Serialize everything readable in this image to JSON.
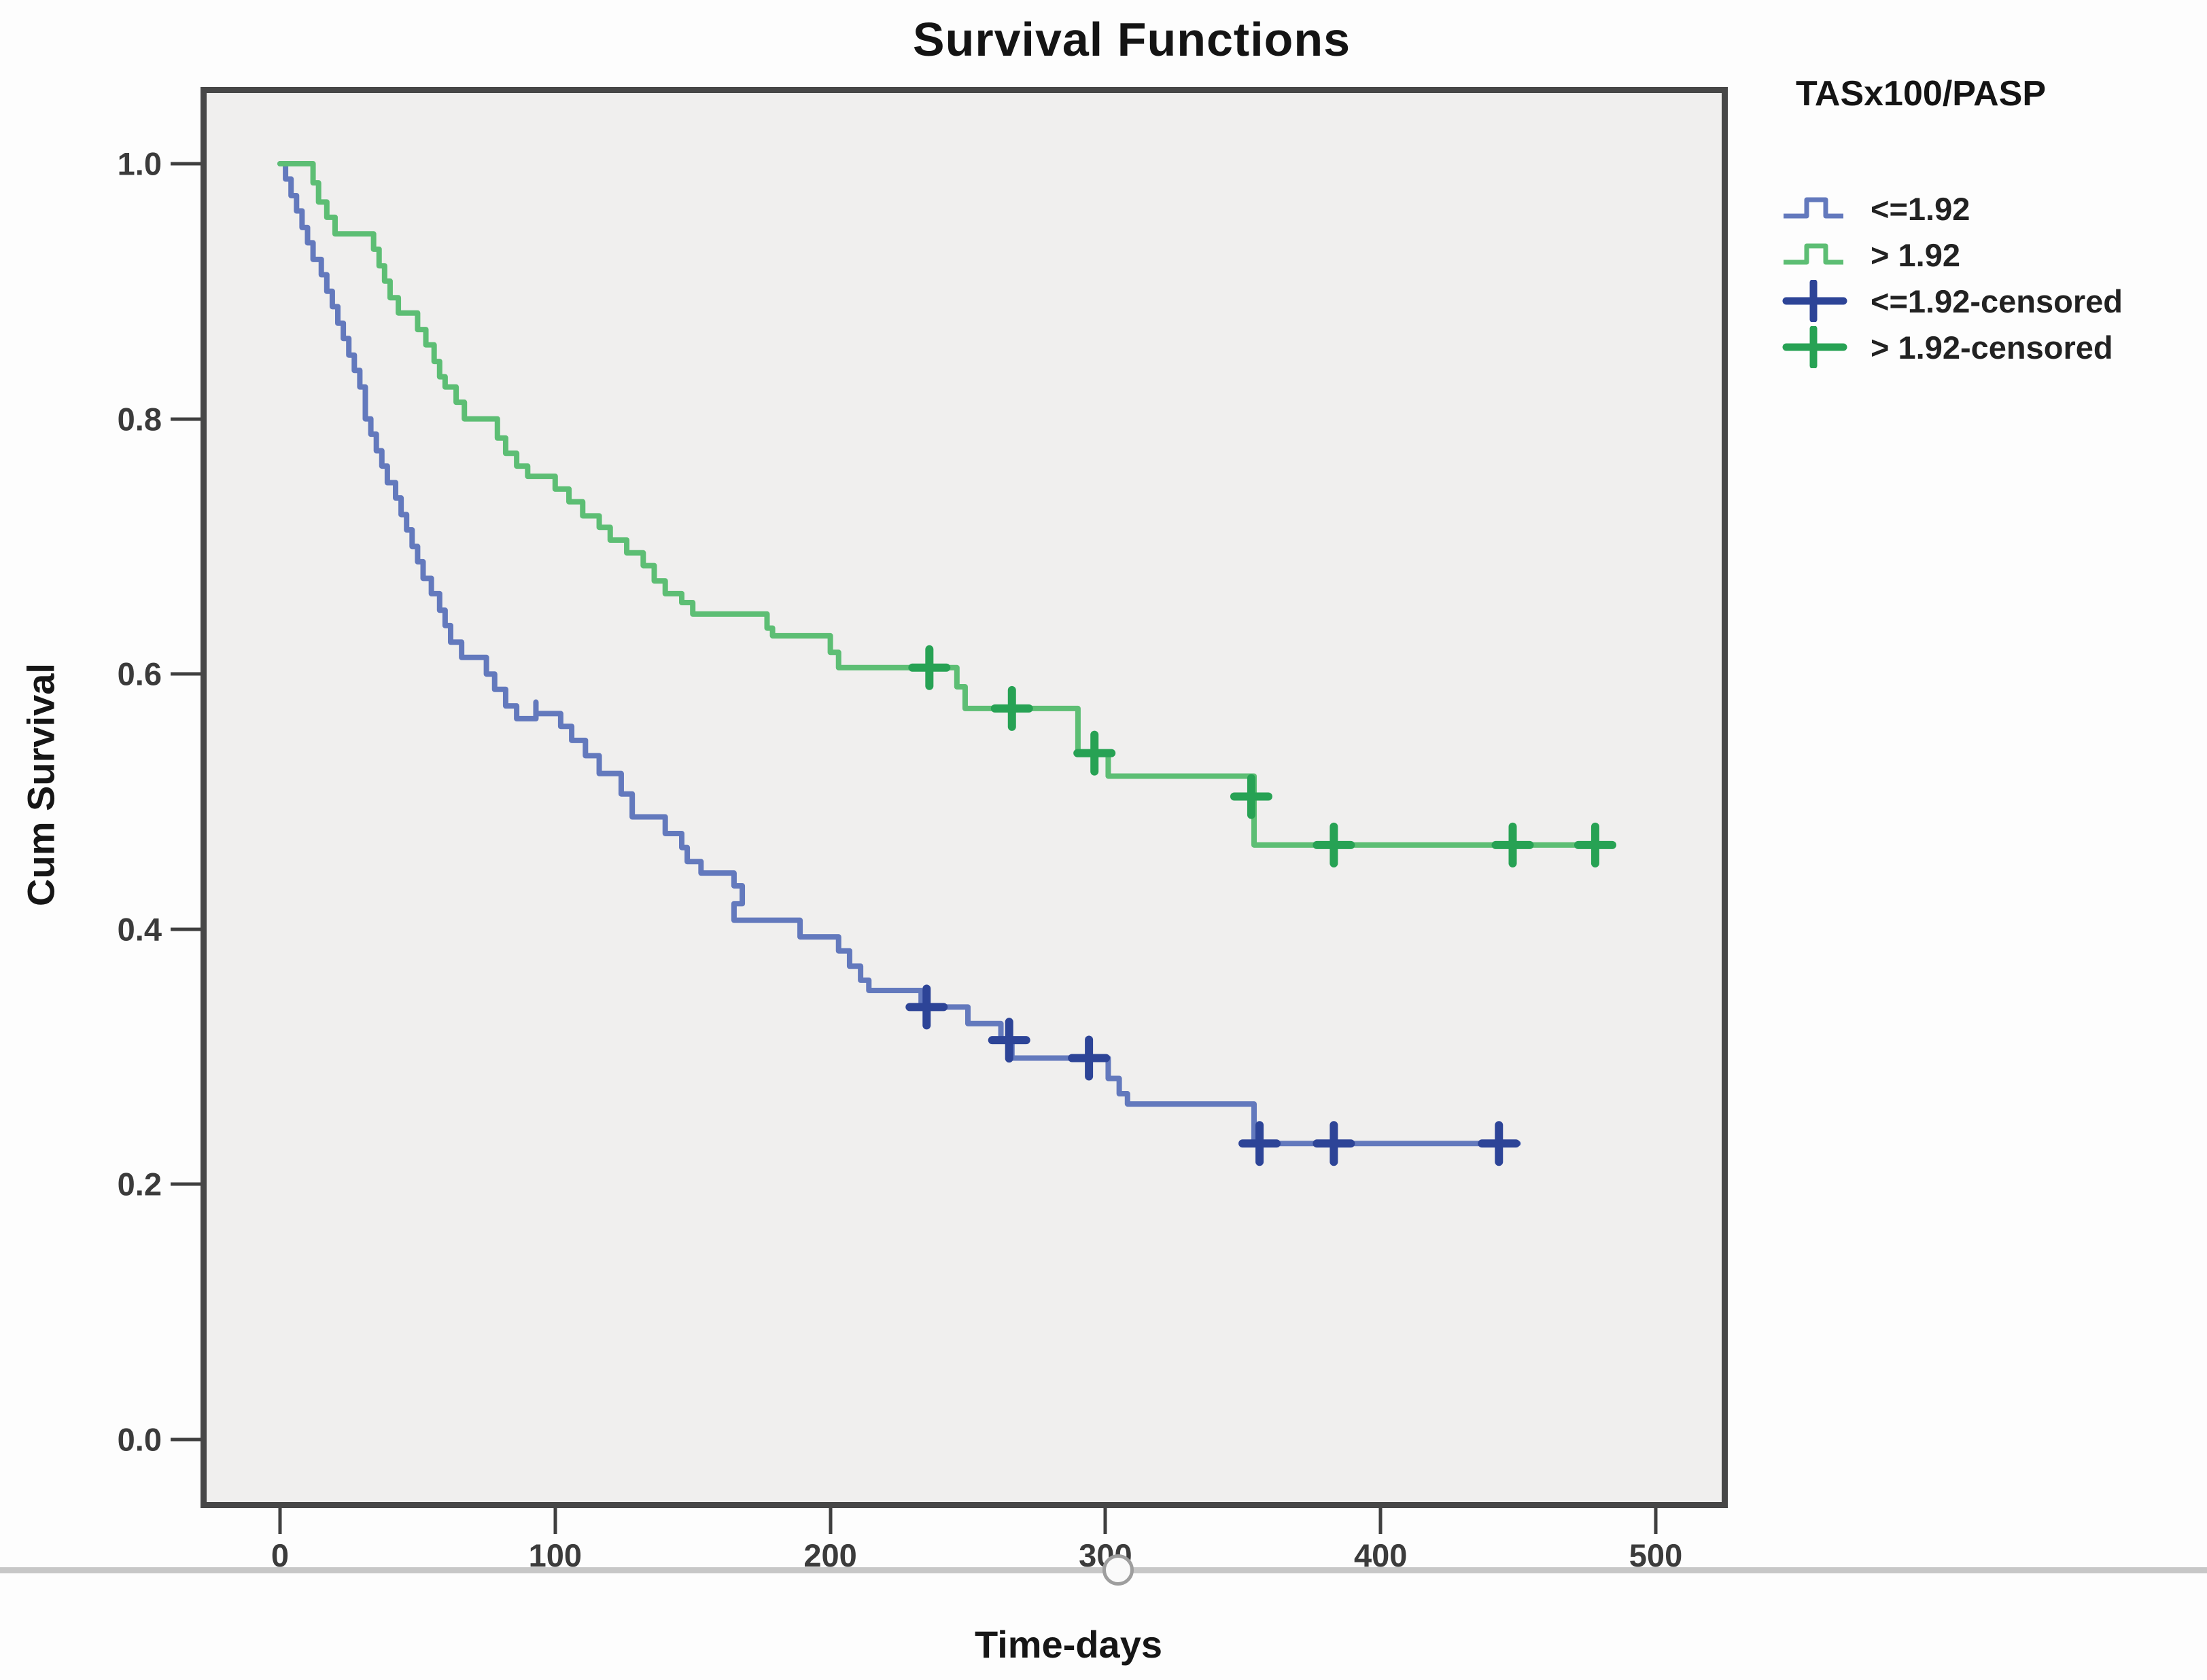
{
  "title": "Survival Functions",
  "y_axis": {
    "label": "Cum Survival",
    "ticks": [
      "1.0",
      "0.8",
      "0.6",
      "0.4",
      "0.2",
      "0.0"
    ],
    "tick_values": [
      1.0,
      0.8,
      0.6,
      0.4,
      0.2,
      0.0
    ]
  },
  "x_axis": {
    "label": "Time-days",
    "ticks": [
      "0",
      "100",
      "200",
      "300",
      "400",
      "500"
    ],
    "tick_values": [
      0,
      100,
      200,
      300,
      400,
      500
    ]
  },
  "legend": {
    "title": "TASx100/PASP",
    "entries": [
      {
        "label": "<=1.92",
        "type": "step-line",
        "color": "#6379bd"
      },
      {
        "label": "> 1.92",
        "type": "step-line",
        "color": "#5dbe74"
      },
      {
        "label": "<=1.92-censored",
        "type": "plus",
        "color": "#2d4497"
      },
      {
        "label": "> 1.92-censored",
        "type": "plus",
        "color": "#27a254"
      }
    ]
  },
  "colors": {
    "plot_background": "#f0efee",
    "plot_border": "#474747",
    "blue_line": "#6379bd",
    "blue_censor": "#2d4497",
    "green_line": "#5dbe74",
    "green_censor": "#27a254"
  },
  "chart_data": {
    "type": "line",
    "subtype": "kaplan-meier-step",
    "title": "Survival Functions",
    "xlabel": "Time-days",
    "ylabel": "Cum Survival",
    "xlim": [
      0,
      500
    ],
    "ylim": [
      0.0,
      1.0
    ],
    "grid": false,
    "legend_position": "right-top",
    "series": [
      {
        "name": "<=1.92",
        "color": "#6379bd",
        "censor_color": "#2d4497",
        "steps": [
          [
            0,
            1.0
          ],
          [
            2,
            0.988
          ],
          [
            4,
            0.975
          ],
          [
            6,
            0.963
          ],
          [
            8,
            0.95
          ],
          [
            10,
            0.938
          ],
          [
            12,
            0.925
          ],
          [
            15,
            0.913
          ],
          [
            17,
            0.9
          ],
          [
            19,
            0.888
          ],
          [
            21,
            0.875
          ],
          [
            23,
            0.863
          ],
          [
            25,
            0.85
          ],
          [
            27,
            0.838
          ],
          [
            29,
            0.825
          ],
          [
            31,
            0.8
          ],
          [
            33,
            0.788
          ],
          [
            35,
            0.775
          ],
          [
            37,
            0.763
          ],
          [
            39,
            0.75
          ],
          [
            42,
            0.738
          ],
          [
            44,
            0.725
          ],
          [
            46,
            0.713
          ],
          [
            48,
            0.7
          ],
          [
            50,
            0.688
          ],
          [
            52,
            0.675
          ],
          [
            55,
            0.663
          ],
          [
            58,
            0.65
          ],
          [
            60,
            0.638
          ],
          [
            62,
            0.625
          ],
          [
            66,
            0.613
          ],
          [
            75,
            0.6
          ],
          [
            78,
            0.588
          ],
          [
            82,
            0.575
          ],
          [
            86,
            0.565
          ],
          [
            93,
            0.578
          ],
          [
            93,
            0.569
          ],
          [
            95,
            0.569
          ],
          [
            102,
            0.559
          ],
          [
            106,
            0.548
          ],
          [
            111,
            0.536
          ],
          [
            116,
            0.522
          ],
          [
            124,
            0.506
          ],
          [
            128,
            0.488
          ],
          [
            140,
            0.475
          ],
          [
            146,
            0.464
          ],
          [
            148,
            0.453
          ],
          [
            153,
            0.444
          ],
          [
            165,
            0.434
          ],
          [
            168,
            0.42
          ],
          [
            165,
            0.407
          ],
          [
            189,
            0.394
          ],
          [
            203,
            0.383
          ],
          [
            207,
            0.371
          ],
          [
            211,
            0.36
          ],
          [
            214,
            0.352
          ],
          [
            233,
            0.339
          ],
          [
            250,
            0.326
          ],
          [
            262,
            0.313
          ],
          [
            266,
            0.299
          ],
          [
            301,
            0.283
          ],
          [
            305,
            0.271
          ],
          [
            308,
            0.263
          ],
          [
            354,
            0.232
          ],
          [
            450,
            0.232
          ]
        ],
        "censored": [
          [
            235,
            0.339
          ],
          [
            265,
            0.313
          ],
          [
            294,
            0.299
          ],
          [
            356,
            0.232
          ],
          [
            383,
            0.232
          ],
          [
            443,
            0.232
          ]
        ]
      },
      {
        "name": "> 1.92",
        "color": "#5dbe74",
        "censor_color": "#27a254",
        "steps": [
          [
            0,
            1.0
          ],
          [
            12,
            0.985
          ],
          [
            14,
            0.97
          ],
          [
            17,
            0.958
          ],
          [
            20,
            0.945
          ],
          [
            34,
            0.933
          ],
          [
            36,
            0.92
          ],
          [
            38,
            0.908
          ],
          [
            40,
            0.895
          ],
          [
            43,
            0.883
          ],
          [
            50,
            0.87
          ],
          [
            53,
            0.858
          ],
          [
            56,
            0.845
          ],
          [
            58,
            0.833
          ],
          [
            60,
            0.825
          ],
          [
            64,
            0.813
          ],
          [
            67,
            0.8
          ],
          [
            79,
            0.785
          ],
          [
            82,
            0.773
          ],
          [
            86,
            0.763
          ],
          [
            90,
            0.755
          ],
          [
            100,
            0.745
          ],
          [
            105,
            0.735
          ],
          [
            110,
            0.724
          ],
          [
            116,
            0.715
          ],
          [
            120,
            0.705
          ],
          [
            126,
            0.695
          ],
          [
            132,
            0.685
          ],
          [
            136,
            0.673
          ],
          [
            140,
            0.663
          ],
          [
            146,
            0.656
          ],
          [
            150,
            0.647
          ],
          [
            177,
            0.636
          ],
          [
            179,
            0.63
          ],
          [
            200,
            0.617
          ],
          [
            203,
            0.605
          ],
          [
            246,
            0.59
          ],
          [
            249,
            0.573
          ],
          [
            290,
            0.538
          ],
          [
            301,
            0.52
          ],
          [
            354,
            0.466
          ],
          [
            481,
            0.466
          ]
        ],
        "censored": [
          [
            236,
            0.605
          ],
          [
            266,
            0.573
          ],
          [
            296,
            0.538
          ],
          [
            353,
            0.504
          ],
          [
            383,
            0.466
          ],
          [
            448,
            0.466
          ],
          [
            478,
            0.466
          ]
        ]
      }
    ]
  }
}
